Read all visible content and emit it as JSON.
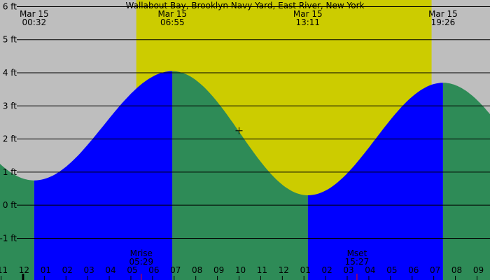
{
  "chart_data": {
    "type": "area",
    "title": "Wallabout Bay, Brooklyn Navy Yard, East River, New York",
    "xlabel": "",
    "ylabel": "",
    "x_axis": {
      "unit": "hour of day",
      "range": [
        -1.05,
        21.6
      ],
      "tick_hours": [
        -1,
        0,
        1,
        2,
        3,
        4,
        5,
        6,
        7,
        8,
        9,
        10,
        11,
        12,
        13,
        14,
        15,
        16,
        17,
        18,
        19,
        20,
        21
      ],
      "tick_labels": [
        "11",
        "12",
        "01",
        "02",
        "03",
        "04",
        "05",
        "06",
        "07",
        "08",
        "09",
        "10",
        "11",
        "12",
        "01",
        "02",
        "03",
        "04",
        "05",
        "06",
        "07",
        "08",
        "09"
      ]
    },
    "y_axis": {
      "range": [
        -1.9,
        6.2
      ],
      "ticks": [
        -1,
        0,
        1,
        2,
        3,
        4,
        5,
        6
      ],
      "tick_labels": [
        "-1 ft",
        "0 ft",
        "1 ft",
        "2 ft",
        "3 ft",
        "4 ft",
        "5 ft",
        "6 ft"
      ]
    },
    "grid": true,
    "daylight": {
      "start_hour": 5.25,
      "end_hour": 18.9,
      "color": "#cccc00"
    },
    "colors": {
      "background": "#bebebe",
      "rising": "#0000ff",
      "falling": "#2e8b57",
      "grid": "#000000",
      "moon_tick": "#ff0000"
    },
    "tide_events": [
      {
        "kind": "low",
        "date": "Mar 15",
        "time": "00:32",
        "hour": 0.53,
        "height_ft": 0.75
      },
      {
        "kind": "high",
        "date": "Mar 15",
        "time": "06:55",
        "hour": 6.92,
        "height_ft": 4.05
      },
      {
        "kind": "low",
        "date": "Mar 15",
        "time": "13:11",
        "hour": 13.18,
        "height_ft": 0.3
      },
      {
        "kind": "high",
        "date": "Mar 15",
        "time": "19:26",
        "hour": 19.43,
        "height_ft": 3.7
      }
    ],
    "curve": {
      "start": {
        "hour": -1.05,
        "height_ft": 1.25
      },
      "end": {
        "hour": 21.6,
        "height_ft": 2.75
      }
    },
    "moon_events": [
      {
        "label": "Mrise",
        "time": "05:29",
        "hour": 5.48
      },
      {
        "label": "Mset",
        "time": "15:27",
        "hour": 15.45
      }
    ],
    "cursor": {
      "hour": 10.0,
      "height_ft": 2.25
    }
  }
}
